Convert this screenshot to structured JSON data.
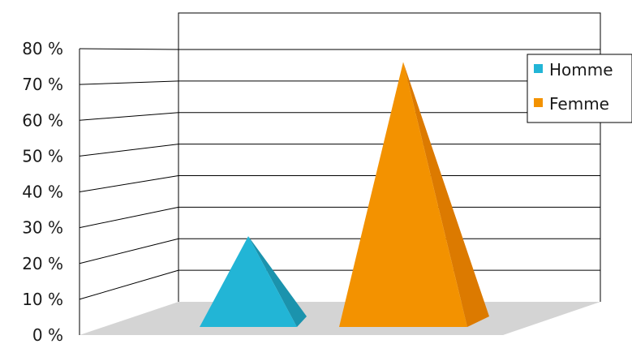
{
  "chart_data": {
    "type": "bar",
    "shape": "pyramid-3d",
    "title": "",
    "xlabel": "",
    "ylabel": "",
    "ylim": [
      0,
      80
    ],
    "y_ticks": [
      {
        "value": 0,
        "label": "0 %"
      },
      {
        "value": 10,
        "label": "10 %"
      },
      {
        "value": 20,
        "label": "20 %"
      },
      {
        "value": 30,
        "label": "30 %"
      },
      {
        "value": 40,
        "label": "40 %"
      },
      {
        "value": 50,
        "label": "50 %"
      },
      {
        "value": 60,
        "label": "60 %"
      },
      {
        "value": 70,
        "label": "70 %"
      },
      {
        "value": 80,
        "label": "80 %"
      }
    ],
    "grid": true,
    "legend_position": "top-right",
    "series": [
      {
        "name": "Homme",
        "value": 25,
        "color": "#22b5d6",
        "side_color": "#1b93ad"
      },
      {
        "name": "Femme",
        "value": 73,
        "color": "#f39200",
        "side_color": "#dc7a00"
      }
    ],
    "floor_color": "#d4d4d4"
  }
}
